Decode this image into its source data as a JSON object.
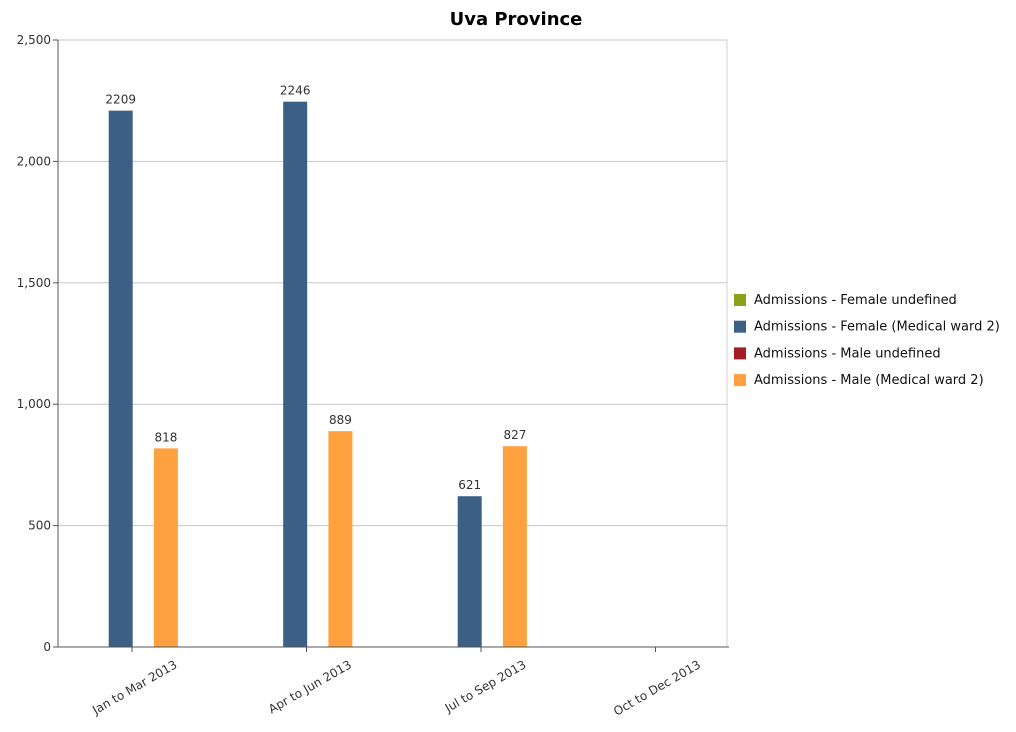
{
  "chart_data": {
    "type": "bar",
    "title": "Uva Province",
    "categories": [
      "Jan to Mar 2013",
      "Apr to Jun 2013",
      "Jul to Sep 2013",
      "Oct to Dec 2013"
    ],
    "series": [
      {
        "name": "Admissions - Female undefined",
        "color": "#8aa31a",
        "values": [
          null,
          null,
          null,
          null
        ]
      },
      {
        "name": "Admissions - Female (Medical ward 2)",
        "color": "#3b5f85",
        "values": [
          2209,
          2246,
          621,
          null
        ]
      },
      {
        "name": "Admissions - Male undefined",
        "color": "#a31d24",
        "values": [
          null,
          null,
          null,
          null
        ]
      },
      {
        "name": "Admissions - Male (Medical ward 2)",
        "color": "#ffa13e",
        "values": [
          818,
          889,
          827,
          null
        ]
      }
    ],
    "ylim": [
      0,
      2500
    ],
    "yticks": [
      0,
      500,
      1000,
      1500,
      2000,
      2500
    ],
    "ytick_labels": [
      "0",
      "500",
      "1,000",
      "1,500",
      "2,000",
      "2,500"
    ],
    "grid": true,
    "legend_position": "right"
  }
}
